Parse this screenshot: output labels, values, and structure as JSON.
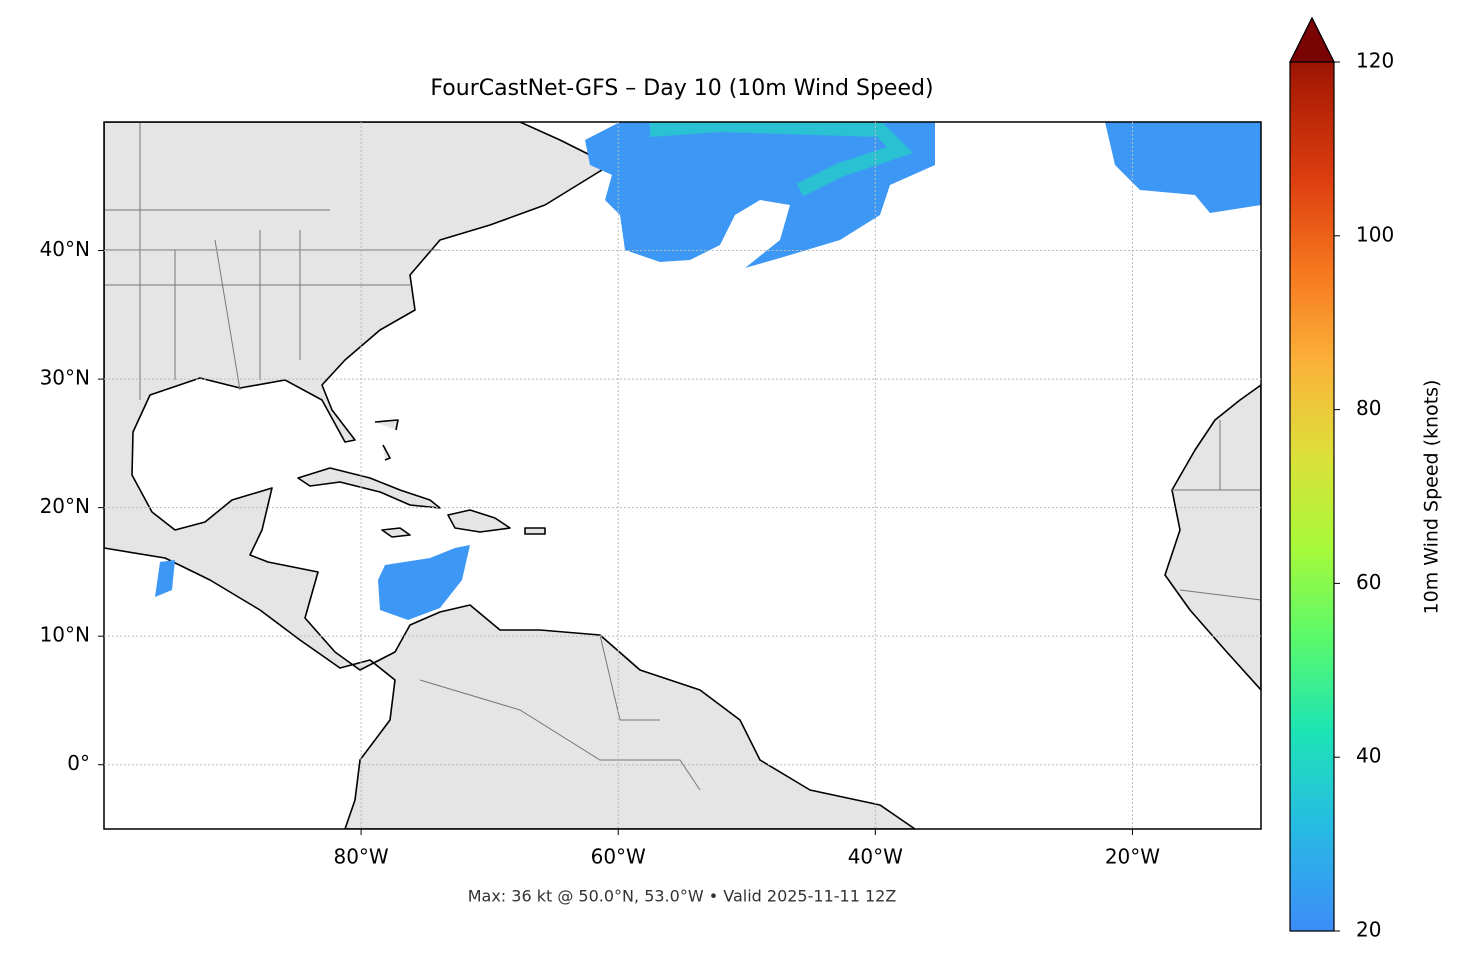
{
  "chart_data": {
    "type": "map",
    "title": "FourCastNet-GFS – Day 10 (10m Wind Speed)",
    "note": "Max: 36 kt @ 50.0°N, 53.0°W • Valid 2025-11-11 12Z",
    "xlim": [
      -100,
      -10
    ],
    "ylim": [
      -5,
      50
    ],
    "xticks": [
      {
        "value": -80,
        "label": "80°W"
      },
      {
        "value": -60,
        "label": "60°W"
      },
      {
        "value": -40,
        "label": "40°W"
      },
      {
        "value": -20,
        "label": "20°W"
      }
    ],
    "yticks": [
      {
        "value": 0,
        "label": "0°"
      },
      {
        "value": 10,
        "label": "10°N"
      },
      {
        "value": 20,
        "label": "20°N"
      },
      {
        "value": 30,
        "label": "30°N"
      },
      {
        "value": 40,
        "label": "40°N"
      }
    ],
    "grid": true,
    "colorbar": {
      "label": "10m Wind Speed (knots)",
      "lim": [
        20,
        120
      ],
      "ticks": [
        20,
        40,
        60,
        80,
        100,
        120
      ]
    }
  }
}
